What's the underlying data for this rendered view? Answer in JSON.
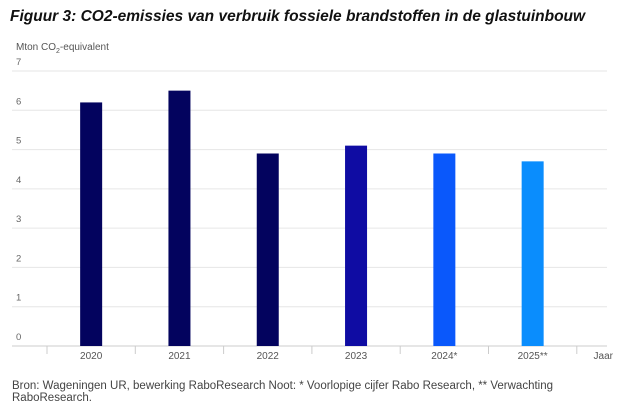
{
  "chart_data": {
    "type": "bar",
    "title": "Figuur 3: CO2-emissies van verbruik fossiele brandstoffen in de glastuinbouw",
    "ylabel_prefix": "Mton CO",
    "ylabel_sub": "2",
    "ylabel_suffix": "-equivalent",
    "xlabel": "Jaar",
    "categories": [
      "2020",
      "2021",
      "2022",
      "2023",
      "2024*",
      "2025**"
    ],
    "values": [
      6.2,
      6.5,
      4.9,
      5.1,
      4.9,
      4.7
    ],
    "colors": [
      "#03035e",
      "#03035e",
      "#03035e",
      "#0f0ca3",
      "#0a58fb",
      "#0a8dfd"
    ],
    "ylim": [
      0,
      7
    ],
    "yticks": [
      "0",
      "1",
      "2",
      "3",
      "4",
      "5",
      "6",
      "7"
    ],
    "grid": true,
    "note": "Bron: Wageningen UR, bewerking RaboResearch Noot: * Voorlopige cijfer Rabo Research, ** Verwachting RaboResearch."
  }
}
